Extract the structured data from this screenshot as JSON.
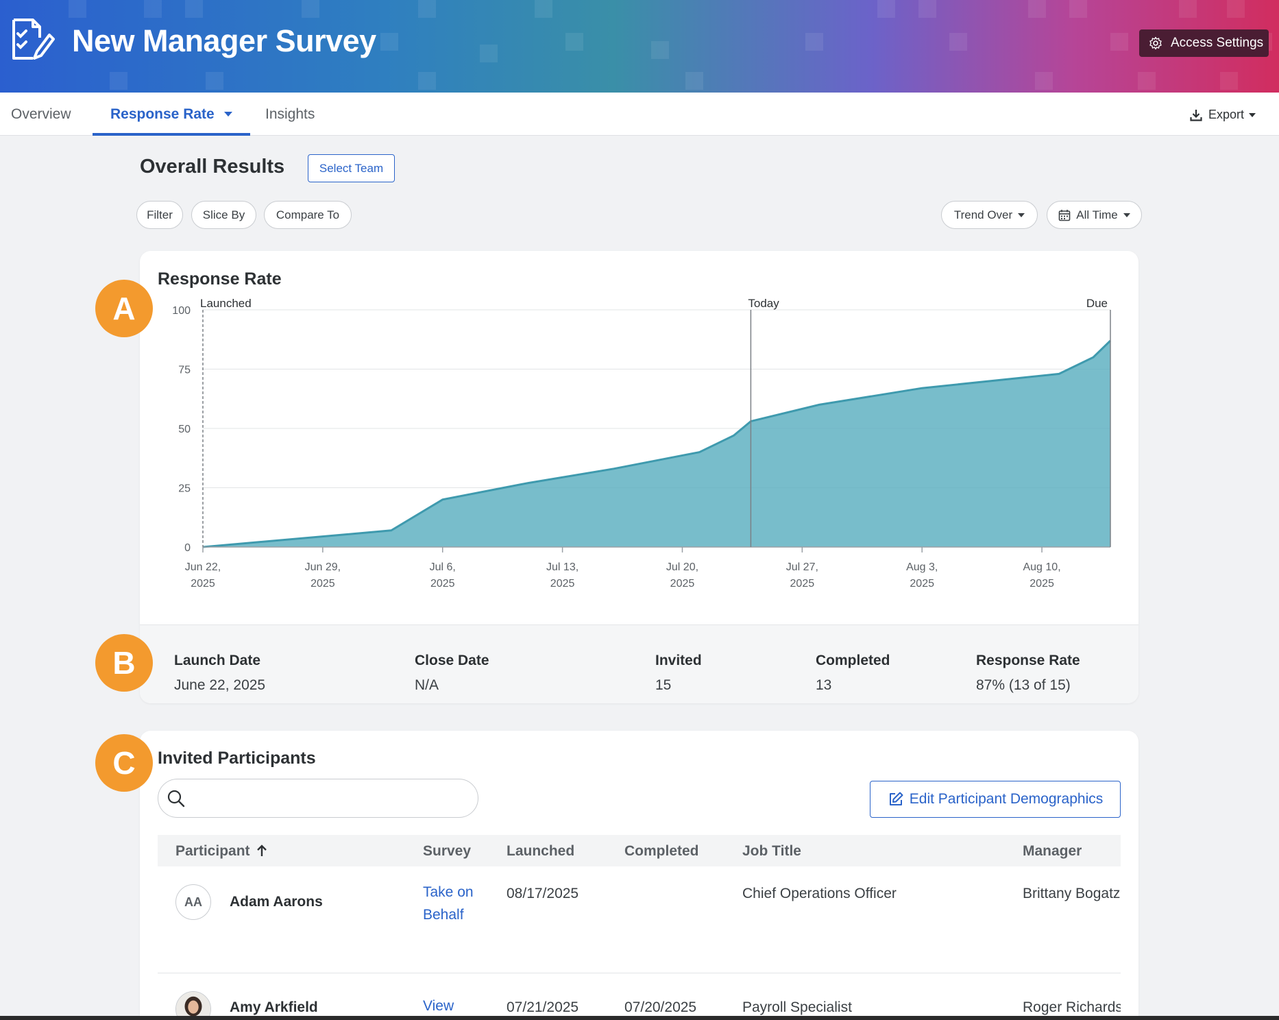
{
  "header": {
    "title": "New Manager Survey",
    "access_settings": "Access Settings",
    "colors": {
      "gradient_start": "#2b5fcf",
      "gradient_end": "#d12d5f",
      "access_bg": "#4a1d33"
    }
  },
  "tabs": [
    {
      "label": "Overview",
      "active": false
    },
    {
      "label": "Response Rate",
      "active": true
    },
    {
      "label": "Insights",
      "active": false
    }
  ],
  "export_label": "Export",
  "overall": {
    "title": "Overall Results",
    "select_team": "Select Team",
    "filter": "Filter",
    "slice_by": "Slice By",
    "compare_to": "Compare To",
    "trend_over": "Trend Over",
    "all_time": "All Time"
  },
  "markers": {
    "a": "A",
    "b": "B",
    "c": "C"
  },
  "chart_data": {
    "type": "area",
    "title": "Response Rate",
    "ylim": [
      0,
      100
    ],
    "yticks": [
      "0",
      "25",
      "50",
      "75",
      "100"
    ],
    "xticks": [
      {
        "line1": "Jun 22,",
        "line2": "2025",
        "date": "2025-06-22"
      },
      {
        "line1": "Jun 29,",
        "line2": "2025",
        "date": "2025-06-29"
      },
      {
        "line1": "Jul 6,",
        "line2": "2025",
        "date": "2025-07-06"
      },
      {
        "line1": "Jul 13,",
        "line2": "2025",
        "date": "2025-07-13"
      },
      {
        "line1": "Jul 20,",
        "line2": "2025",
        "date": "2025-07-20"
      },
      {
        "line1": "Jul 27,",
        "line2": "2025",
        "date": "2025-07-27"
      },
      {
        "line1": "Aug 3,",
        "line2": "2025",
        "date": "2025-08-03"
      },
      {
        "line1": "Aug 10,",
        "line2": "2025",
        "date": "2025-08-10"
      }
    ],
    "xlim": [
      "2025-06-22",
      "2025-08-14"
    ],
    "markers": [
      {
        "label": "Launched",
        "date": "2025-06-22",
        "style": "dashed"
      },
      {
        "label": "Today",
        "date": "2025-07-24",
        "style": "solid"
      },
      {
        "label": "Due",
        "date": "2025-08-14",
        "style": "solid"
      }
    ],
    "series": [
      {
        "color": "#5aaebf",
        "points": [
          {
            "x": "2025-06-22",
            "y": 0
          },
          {
            "x": "2025-07-03",
            "y": 7
          },
          {
            "x": "2025-07-06",
            "y": 20
          },
          {
            "x": "2025-07-11",
            "y": 27
          },
          {
            "x": "2025-07-16",
            "y": 33
          },
          {
            "x": "2025-07-21",
            "y": 40
          },
          {
            "x": "2025-07-23",
            "y": 47
          },
          {
            "x": "2025-07-24",
            "y": 53
          },
          {
            "x": "2025-07-28",
            "y": 60
          },
          {
            "x": "2025-08-03",
            "y": 67
          },
          {
            "x": "2025-08-11",
            "y": 73
          },
          {
            "x": "2025-08-13",
            "y": 80
          },
          {
            "x": "2025-08-14",
            "y": 87
          }
        ]
      }
    ]
  },
  "stats": [
    {
      "label": "Launch Date",
      "value": "June 22, 2025"
    },
    {
      "label": "Close Date",
      "value": "N/A"
    },
    {
      "label": "Invited",
      "value": "15"
    },
    {
      "label": "Completed",
      "value": "13"
    },
    {
      "label": "Response Rate",
      "value": "87% (13 of 15)"
    }
  ],
  "participants": {
    "title": "Invited Participants",
    "search_placeholder": "",
    "edit_demographics": "Edit Participant Demographics",
    "columns": [
      "Participant",
      "Survey",
      "Launched",
      "Completed",
      "Job Title",
      "Manager"
    ],
    "rows": [
      {
        "initials": "AA",
        "name": "Adam Aarons",
        "survey": "Take on Behalf",
        "launched": "08/17/2025",
        "completed": "",
        "job_title": "Chief Operations Officer",
        "manager": "Brittany Bogatz"
      },
      {
        "initials": "",
        "name": "Amy Arkfield",
        "survey": "View",
        "launched": "07/21/2025",
        "completed": "07/20/2025",
        "job_title": "Payroll Specialist",
        "manager": "Roger Richards"
      }
    ]
  }
}
